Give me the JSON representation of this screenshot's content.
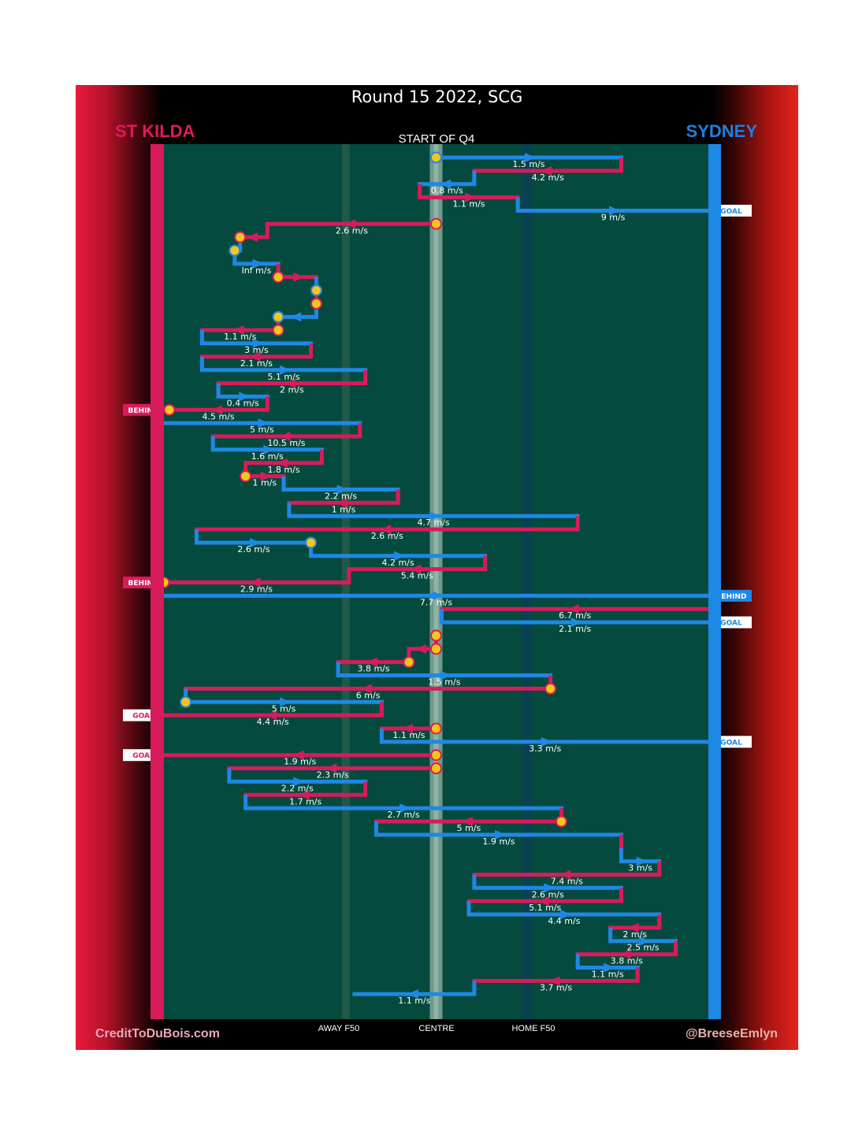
{
  "title": "Round 15 2022, SCG",
  "teams": {
    "away": "ST KILDA",
    "home": "SYDNEY"
  },
  "period_label": "START OF Q4",
  "zone_labels": {
    "away_f50": "AWAY F50",
    "centre": "CENTRE",
    "home_f50": "HOME F50"
  },
  "credits": {
    "left": "CreditToDuBois.com",
    "right": "@BreeseEmlyn"
  },
  "colors": {
    "st_kilda": "#d81b5a",
    "sydney": "#1e88e5",
    "field": "#054a3e",
    "background": "#000000",
    "marker": "#f5c518"
  },
  "chart_data": {
    "type": "chain",
    "description_axis": "horizontal position from St Kilda goal (0) to Sydney goal (100); vertical = sequence order",
    "x_range": [
      0,
      100
    ],
    "zones": {
      "away_f50": 33.4,
      "centre": 50.0,
      "home_f50": 66.6
    },
    "segments": [
      {
        "team": "sydney",
        "y": 1,
        "from": 50,
        "to": 84,
        "speed": "1.5 m/s",
        "start_marker": true
      },
      {
        "team": "st_kilda",
        "y": 2,
        "from": 84,
        "to": 57,
        "speed": "4.2 m/s"
      },
      {
        "team": "sydney",
        "y": 3,
        "from": 57,
        "to": 47,
        "speed": "0.8 m/s"
      },
      {
        "team": "st_kilda",
        "y": 4,
        "from": 47,
        "to": 65,
        "speed": "1.1 m/s"
      },
      {
        "team": "sydney",
        "y": 5,
        "from": 65,
        "to": 100,
        "speed": "9 m/s",
        "result": "GOAL"
      },
      {
        "team": "st_kilda",
        "y": 6,
        "from": 50,
        "to": 19,
        "speed": "2.6 m/s",
        "start_marker": true
      },
      {
        "team": "st_kilda",
        "y": 7,
        "from": 19,
        "to": 14,
        "speed": "",
        "end_marker": true
      },
      {
        "team": "sydney",
        "y": 8,
        "from": 14,
        "to": 13,
        "speed": "",
        "end_marker": true
      },
      {
        "team": "sydney",
        "y": 9,
        "from": 13,
        "to": 21,
        "speed": "Inf m/s"
      },
      {
        "team": "st_kilda",
        "y": 10,
        "from": 21,
        "to": 28,
        "speed": "",
        "start_marker": true
      },
      {
        "team": "sydney",
        "y": 11,
        "from": 28,
        "to": 28,
        "speed": "",
        "end_marker": true
      },
      {
        "team": "st_kilda",
        "y": 12,
        "from": 28,
        "to": 28,
        "speed": "",
        "end_marker": true
      },
      {
        "team": "sydney",
        "y": 13,
        "from": 28,
        "to": 21,
        "speed": "",
        "end_marker": true
      },
      {
        "team": "st_kilda",
        "y": 14,
        "from": 21,
        "to": 7,
        "speed": "1.1 m/s",
        "start_marker": true
      },
      {
        "team": "sydney",
        "y": 15,
        "from": 7,
        "to": 27,
        "speed": "3 m/s"
      },
      {
        "team": "st_kilda",
        "y": 16,
        "from": 27,
        "to": 7,
        "speed": "2.1 m/s"
      },
      {
        "team": "sydney",
        "y": 17,
        "from": 7,
        "to": 37,
        "speed": "5.1 m/s"
      },
      {
        "team": "st_kilda",
        "y": 18,
        "from": 37,
        "to": 10,
        "speed": "2 m/s"
      },
      {
        "team": "sydney",
        "y": 19,
        "from": 10,
        "to": 19,
        "speed": "0.4 m/s"
      },
      {
        "team": "st_kilda",
        "y": 20,
        "from": 19,
        "to": 1,
        "speed": "4.5 m/s",
        "result": "BEHIND",
        "end_marker": true
      },
      {
        "team": "sydney",
        "y": 21,
        "from": 0,
        "to": 36,
        "speed": "5 m/s"
      },
      {
        "team": "st_kilda",
        "y": 22,
        "from": 36,
        "to": 9,
        "speed": "10.5 m/s"
      },
      {
        "team": "sydney",
        "y": 23,
        "from": 9,
        "to": 29,
        "speed": "1.6 m/s"
      },
      {
        "team": "st_kilda",
        "y": 24,
        "from": 29,
        "to": 15,
        "speed": "1.8 m/s"
      },
      {
        "team": "st_kilda",
        "y": 25,
        "from": 15,
        "to": 22,
        "speed": "1 m/s",
        "start_marker": true
      },
      {
        "team": "sydney",
        "y": 26,
        "from": 22,
        "to": 43,
        "speed": "2.2 m/s"
      },
      {
        "team": "st_kilda",
        "y": 27,
        "from": 43,
        "to": 23,
        "speed": "1 m/s"
      },
      {
        "team": "sydney",
        "y": 28,
        "from": 23,
        "to": 76,
        "speed": "4.7 m/s"
      },
      {
        "team": "st_kilda",
        "y": 29,
        "from": 76,
        "to": 6,
        "speed": "2.6 m/s"
      },
      {
        "team": "sydney",
        "y": 30,
        "from": 6,
        "to": 27,
        "speed": "2.6 m/s",
        "end_marker": true
      },
      {
        "team": "sydney",
        "y": 31,
        "from": 27,
        "to": 59,
        "speed": "4.2 m/s"
      },
      {
        "team": "st_kilda",
        "y": 32,
        "from": 59,
        "to": 34,
        "speed": "5.4 m/s"
      },
      {
        "team": "st_kilda",
        "y": 33,
        "from": 34,
        "to": 0,
        "speed": "2.9 m/s",
        "result": "BEHIND",
        "end_marker": true
      },
      {
        "team": "sydney",
        "y": 34,
        "from": 0,
        "to": 100,
        "speed": "7.7 m/s",
        "result": "BEHIND"
      },
      {
        "team": "st_kilda",
        "y": 35,
        "from": 100,
        "to": 51,
        "speed": "6.7 m/s"
      },
      {
        "team": "sydney",
        "y": 36,
        "from": 51,
        "to": 100,
        "speed": "2.1 m/s",
        "result": "GOAL"
      },
      {
        "team": "st_kilda",
        "y": 37,
        "from": 50,
        "to": 50,
        "speed": "",
        "end_marker": true
      },
      {
        "team": "st_kilda",
        "y": 38,
        "from": 50,
        "to": 45,
        "speed": "",
        "start_marker": true
      },
      {
        "team": "st_kilda",
        "y": 39,
        "from": 45,
        "to": 32,
        "speed": "3.8 m/s",
        "start_marker": true
      },
      {
        "team": "sydney",
        "y": 40,
        "from": 32,
        "to": 71,
        "speed": "1.5 m/s"
      },
      {
        "team": "st_kilda",
        "y": 41,
        "from": 71,
        "to": 4,
        "speed": "6 m/s",
        "start_marker": true
      },
      {
        "team": "sydney",
        "y": 42,
        "from": 4,
        "to": 40,
        "speed": "5 m/s",
        "start_marker": true
      },
      {
        "team": "st_kilda",
        "y": 43,
        "from": 40,
        "to": 0,
        "speed": "4.4 m/s",
        "result": "GOAL"
      },
      {
        "team": "st_kilda",
        "y": 44,
        "from": 50,
        "to": 40,
        "speed": "1.1 m/s",
        "start_marker": true
      },
      {
        "team": "sydney",
        "y": 45,
        "from": 40,
        "to": 100,
        "speed": "3.3 m/s",
        "result": "GOAL"
      },
      {
        "team": "st_kilda",
        "y": 46,
        "from": 50,
        "to": 0,
        "speed": "1.9 m/s",
        "result": "GOAL",
        "start_marker": true
      },
      {
        "team": "st_kilda",
        "y": 47,
        "from": 50,
        "to": 12,
        "speed": "2.3 m/s",
        "start_marker": true
      },
      {
        "team": "sydney",
        "y": 48,
        "from": 12,
        "to": 37,
        "speed": "2.2 m/s"
      },
      {
        "team": "st_kilda",
        "y": 49,
        "from": 37,
        "to": 15,
        "speed": "1.7 m/s"
      },
      {
        "team": "sydney",
        "y": 50,
        "from": 15,
        "to": 73,
        "speed": "2.7 m/s"
      },
      {
        "team": "st_kilda",
        "y": 51,
        "from": 73,
        "to": 39,
        "speed": "5 m/s",
        "start_marker": true
      },
      {
        "team": "sydney",
        "y": 52,
        "from": 39,
        "to": 84,
        "speed": "1.9 m/s"
      },
      {
        "team": "st_kilda",
        "y": 53,
        "from": 84,
        "to": 84,
        "speed": ""
      },
      {
        "team": "sydney",
        "y": 54,
        "from": 84,
        "to": 91,
        "speed": "3 m/s"
      },
      {
        "team": "st_kilda",
        "y": 55,
        "from": 91,
        "to": 57,
        "speed": "7.4 m/s"
      },
      {
        "team": "sydney",
        "y": 56,
        "from": 57,
        "to": 84,
        "speed": "2.6 m/s"
      },
      {
        "team": "st_kilda",
        "y": 57,
        "from": 84,
        "to": 56,
        "speed": "5.1 m/s"
      },
      {
        "team": "sydney",
        "y": 58,
        "from": 56,
        "to": 91,
        "speed": "4.4 m/s"
      },
      {
        "team": "st_kilda",
        "y": 59,
        "from": 91,
        "to": 82,
        "speed": "2 m/s"
      },
      {
        "team": "sydney",
        "y": 60,
        "from": 82,
        "to": 94,
        "speed": "2.5 m/s"
      },
      {
        "team": "st_kilda",
        "y": 61,
        "from": 94,
        "to": 76,
        "speed": "3.8 m/s"
      },
      {
        "team": "sydney",
        "y": 62,
        "from": 76,
        "to": 87,
        "speed": "1.1 m/s"
      },
      {
        "team": "st_kilda",
        "y": 63,
        "from": 87,
        "to": 57,
        "speed": "3.7 m/s"
      },
      {
        "team": "sydney",
        "y": 64,
        "from": 57,
        "to": 35,
        "speed": "1.1 m/s"
      }
    ]
  }
}
